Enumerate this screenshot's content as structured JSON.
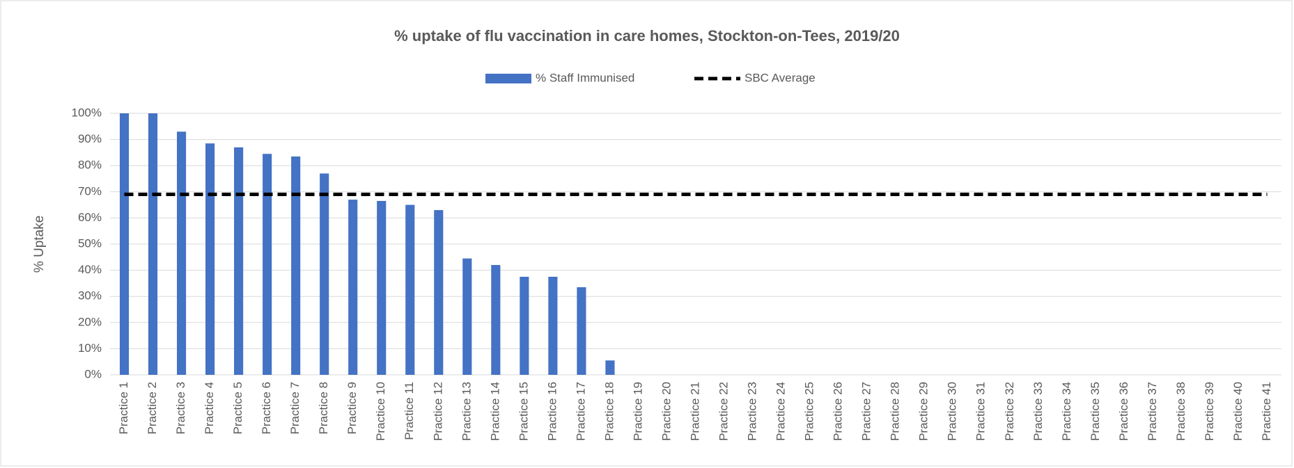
{
  "chart_data": {
    "type": "bar",
    "title": "% uptake of flu vaccination in care homes, Stockton-on-Tees, 2019/20",
    "y_label": "% Uptake",
    "categories": [
      "Practice 1",
      "Practice 2",
      "Practice 3",
      "Practice 4",
      "Practice 5",
      "Practice 6",
      "Practice 7",
      "Practice 8",
      "Practice 9",
      "Practice 10",
      "Practice 11",
      "Practice 12",
      "Practice 13",
      "Practice 14",
      "Practice 15",
      "Practice 16",
      "Practice 17",
      "Practice 18",
      "Practice 19",
      "Practice 20",
      "Practice 21",
      "Practice 22",
      "Practice 23",
      "Practice 24",
      "Practice 25",
      "Practice 26",
      "Practice 27",
      "Practice 28",
      "Practice 29",
      "Practice 30",
      "Practice 31",
      "Practice 32",
      "Practice 33",
      "Practice 34",
      "Practice 35",
      "Practice 36",
      "Practice 37",
      "Practice 38",
      "Practice 39",
      "Practice 40",
      "Practice 41"
    ],
    "series": [
      {
        "name": "% Staff Immunised",
        "type": "bar",
        "color": "#4472c4",
        "values": [
          100,
          100,
          93,
          88.5,
          87,
          84.5,
          83.5,
          77,
          67,
          66.5,
          65,
          63,
          44.5,
          42,
          37.5,
          37.5,
          33.5,
          5.5,
          0,
          0,
          0,
          0,
          0,
          0,
          0,
          0,
          0,
          0,
          0,
          0,
          0,
          0,
          0,
          0,
          0,
          0,
          0,
          0,
          0,
          0,
          0
        ]
      },
      {
        "name": "SBC Average",
        "type": "line",
        "color": "#000000",
        "dashed": true,
        "values": [
          69,
          69,
          69,
          69,
          69,
          69,
          69,
          69,
          69,
          69,
          69,
          69,
          69,
          69,
          69,
          69,
          69,
          69,
          69,
          69,
          69,
          69,
          69,
          69,
          69,
          69,
          69,
          69,
          69,
          69,
          69,
          69,
          69,
          69,
          69,
          69,
          69,
          69,
          69,
          69,
          69
        ]
      }
    ],
    "ylim": [
      0,
      100
    ],
    "yticks": [
      {
        "value": 0,
        "label": "0%"
      },
      {
        "value": 10,
        "label": "10%"
      },
      {
        "value": 20,
        "label": "20%"
      },
      {
        "value": 30,
        "label": "30%"
      },
      {
        "value": 40,
        "label": "40%"
      },
      {
        "value": 50,
        "label": "50%"
      },
      {
        "value": 60,
        "label": "60%"
      },
      {
        "value": 70,
        "label": "70%"
      },
      {
        "value": 80,
        "label": "80%"
      },
      {
        "value": 90,
        "label": "90%"
      },
      {
        "value": 100,
        "label": "100%"
      }
    ],
    "grid": true,
    "legend": "top"
  }
}
